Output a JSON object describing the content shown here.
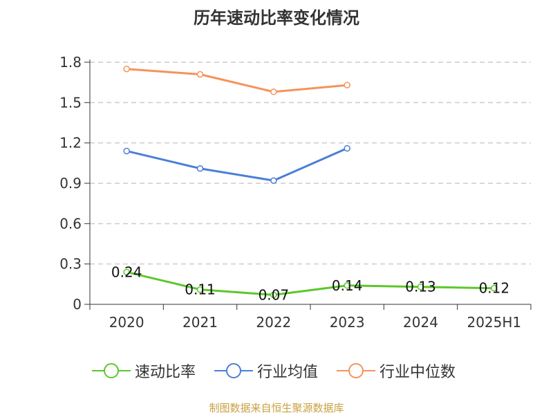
{
  "title": "历年速动比率变化情况",
  "footer": "制图数据来自恒生聚源数据库",
  "chart_data": {
    "type": "line",
    "title": "历年速动比率变化情况",
    "categories": [
      "2020",
      "2021",
      "2022",
      "2023",
      "2024",
      "2025H1"
    ],
    "y_ticks": [
      "0",
      "0.3",
      "0.6",
      "0.9",
      "1.2",
      "1.5",
      "1.8"
    ],
    "ylim": [
      0,
      1.8
    ],
    "grid": true,
    "legend_position": "bottom",
    "series": [
      {
        "name": "速动比率",
        "color": "#5cc72a",
        "values": [
          0.24,
          0.11,
          0.07,
          0.14,
          0.13,
          0.12
        ],
        "labels": [
          "0.24",
          "0.11",
          "0.07",
          "0.14",
          "0.13",
          "0.12"
        ]
      },
      {
        "name": "行业均值",
        "color": "#4a7fd6",
        "values": [
          1.14,
          1.01,
          0.92,
          1.16,
          null,
          null
        ]
      },
      {
        "name": "行业中位数",
        "color": "#f5935a",
        "values": [
          1.75,
          1.71,
          1.58,
          1.63,
          null,
          null
        ]
      }
    ]
  }
}
